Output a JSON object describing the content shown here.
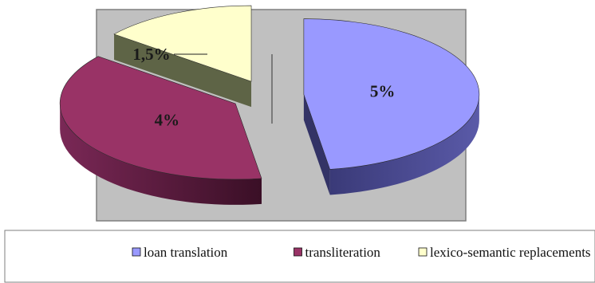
{
  "chart_data": {
    "type": "pie",
    "style": "3d-exploded",
    "title": "",
    "categories": [
      "loan translation",
      "transliteration",
      "lexico-semantic replacements"
    ],
    "values": [
      5,
      4,
      1.5
    ],
    "labels": [
      "5%",
      "4%",
      "1,5%"
    ],
    "colors": [
      "#9999ff",
      "#993366",
      "#ffffcc"
    ],
    "side_colors": [
      "#333366",
      "#4a1a33",
      "#5e6446"
    ],
    "legend_position": "bottom",
    "plot_background": "#c0c0c0"
  }
}
